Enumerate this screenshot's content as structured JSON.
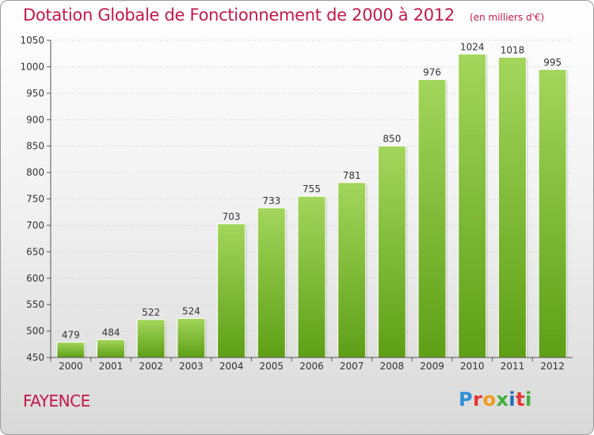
{
  "header": {
    "title": "Dotation Globale de Fonctionnement de 2000 à 2012",
    "unit": "(en milliers d'€)"
  },
  "commune": "FAYENCE",
  "logo": {
    "text": "Proxiti",
    "letters": [
      "P",
      "r",
      "o",
      "x",
      "i",
      "t",
      "i"
    ],
    "colors": [
      "#2f8fd8",
      "#e8322f",
      "#f39b1b",
      "#3fae3c",
      "#1b6fb5",
      "#e8322f",
      "#3fae3c"
    ]
  },
  "chart_data": {
    "type": "bar",
    "title": "Dotation Globale de Fonctionnement de 2000 à 2012",
    "subtitle": "(en milliers d'€)",
    "categories": [
      "2000",
      "2001",
      "2002",
      "2003",
      "2004",
      "2005",
      "2006",
      "2007",
      "2008",
      "2009",
      "2010",
      "2011",
      "2012"
    ],
    "values": [
      479,
      484,
      522,
      524,
      703,
      733,
      755,
      781,
      850,
      976,
      1024,
      1018,
      995
    ],
    "ylim": [
      450,
      1050
    ],
    "yticks": [
      450,
      500,
      550,
      600,
      650,
      700,
      750,
      800,
      850,
      900,
      950,
      1000,
      1050
    ],
    "grid": true,
    "bar_color_top": "#a3d65c",
    "bar_color_bottom": "#5e9f16",
    "text_color": "#333333"
  }
}
